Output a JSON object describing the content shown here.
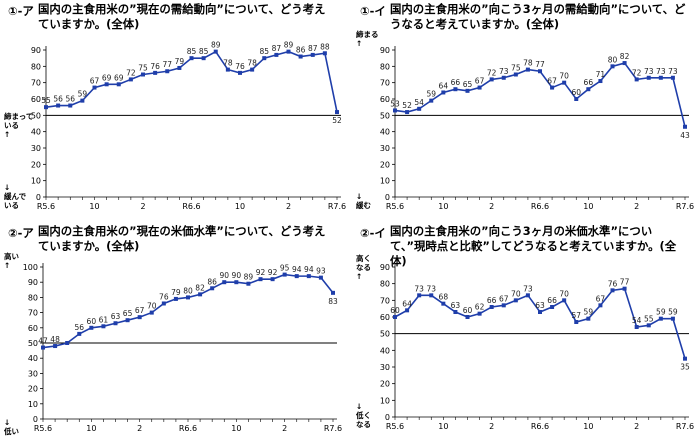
{
  "colors": {
    "line": "#1f3eaa",
    "axis": "#000000",
    "grid": "#d0d0d0",
    "ref": "#000000"
  },
  "panels": [
    {
      "num": "①-ア",
      "title": "国内の主食用米の”現在の需給動向”について、どう考えていますか。(全体)",
      "ylabel_top": [
        "締まって",
        "いる",
        "↑"
      ],
      "ylabel_bottom": [
        "↓",
        "緩んで",
        "いる"
      ]
    },
    {
      "num": "①-イ",
      "title": "国内の主食用米の”向こう3ヶ月の需給動向”について、どうなると考えていますか。(全体)",
      "ylabel_top": [
        "締まる",
        "↑"
      ],
      "ylabel_bottom": [
        "↓",
        "緩む"
      ]
    },
    {
      "num": "②-ア",
      "title": "国内の主食用米の”現在の米価水準”について、どう考えていますか。(全体)",
      "ylabel_top": [
        "高い",
        "↑"
      ],
      "ylabel_bottom": [
        "↓",
        "低い"
      ]
    },
    {
      "num": "②-イ",
      "title": "国内の主食用米の”向こう3ヶ月の米価水準”について、”現時点と比較”してどうなると考えていますか。(全体)",
      "ylabel_top": [
        "高く",
        "なる",
        "↑"
      ],
      "ylabel_bottom": [
        "↓",
        "低く",
        "なる"
      ]
    }
  ],
  "chart_data": [
    {
      "type": "line",
      "ylim": [
        0,
        90
      ],
      "yticks": [
        0,
        10,
        20,
        30,
        40,
        50,
        60,
        70,
        80,
        90
      ],
      "reference": 50,
      "xtick_labels": [
        {
          "i": 0,
          "t": "R5.6"
        },
        {
          "i": 4,
          "t": "10"
        },
        {
          "i": 8,
          "t": "2"
        },
        {
          "i": 12,
          "t": "R6.6"
        },
        {
          "i": 16,
          "t": "10"
        },
        {
          "i": 20,
          "t": "2"
        },
        {
          "i": 24,
          "t": "R7.6"
        }
      ],
      "values": [
        55,
        56,
        56,
        59,
        67,
        69,
        69,
        72,
        75,
        76,
        77,
        79,
        85,
        85,
        89,
        78,
        76,
        78,
        85,
        87,
        89,
        86,
        87,
        88,
        52
      ],
      "labels": [
        "55",
        "56",
        "56",
        "59",
        "67",
        "69",
        "69",
        "72",
        "75",
        "76",
        "77",
        "79",
        "85",
        "85",
        "89",
        "78",
        "76",
        "78",
        "85",
        "87",
        "89",
        "86",
        "87",
        "88",
        "52"
      ]
    },
    {
      "type": "line",
      "ylim": [
        0,
        90
      ],
      "yticks": [
        0,
        10,
        20,
        30,
        40,
        50,
        60,
        70,
        80,
        90
      ],
      "reference": 50,
      "xtick_labels": [
        {
          "i": 0,
          "t": "R5.6"
        },
        {
          "i": 4,
          "t": "10"
        },
        {
          "i": 8,
          "t": "2"
        },
        {
          "i": 12,
          "t": "R6.6"
        },
        {
          "i": 16,
          "t": "10"
        },
        {
          "i": 20,
          "t": "2"
        },
        {
          "i": 24,
          "t": "R7.6"
        }
      ],
      "values": [
        53,
        52,
        54,
        59,
        64,
        66,
        65,
        67,
        72,
        73,
        75,
        78,
        77,
        67,
        70,
        60,
        66,
        71,
        80,
        82,
        72,
        73,
        73,
        73,
        43
      ],
      "labels": [
        "53",
        "52",
        "54",
        "59",
        "64",
        "66",
        "65",
        "67",
        "72",
        "73",
        "75",
        "78",
        "77",
        "67",
        "70",
        "60",
        "66",
        "71",
        "80",
        "82",
        "72",
        "73",
        "73",
        "73",
        "43"
      ]
    },
    {
      "type": "line",
      "ylim": [
        0,
        100
      ],
      "yticks": [
        0,
        10,
        20,
        30,
        40,
        50,
        60,
        70,
        80,
        90,
        100
      ],
      "reference": 50,
      "xtick_labels": [
        {
          "i": 0,
          "t": "R5.6"
        },
        {
          "i": 4,
          "t": "10"
        },
        {
          "i": 8,
          "t": "2"
        },
        {
          "i": 12,
          "t": "R6.6"
        },
        {
          "i": 16,
          "t": "10"
        },
        {
          "i": 20,
          "t": "2"
        },
        {
          "i": 24,
          "t": "R7.6"
        }
      ],
      "values": [
        47,
        48,
        50,
        56,
        60,
        61,
        63,
        65,
        67,
        70,
        76,
        79,
        80,
        82,
        86,
        90,
        90,
        89,
        92,
        92,
        95,
        94,
        94,
        93,
        83
      ],
      "labels": [
        "47",
        "48",
        "",
        "56",
        "60",
        "61",
        "63",
        "65",
        "67",
        "70",
        "76",
        "79",
        "80",
        "82",
        "86",
        "90",
        "90",
        "89",
        "92",
        "92",
        "95",
        "94",
        "94",
        "93",
        "83"
      ]
    },
    {
      "type": "line",
      "ylim": [
        0,
        90
      ],
      "yticks": [
        0,
        10,
        20,
        30,
        40,
        50,
        60,
        70,
        80,
        90
      ],
      "reference": 50,
      "xtick_labels": [
        {
          "i": 0,
          "t": "R5.6"
        },
        {
          "i": 4,
          "t": "10"
        },
        {
          "i": 8,
          "t": "2"
        },
        {
          "i": 12,
          "t": "R6.6"
        },
        {
          "i": 16,
          "t": "10"
        },
        {
          "i": 20,
          "t": "2"
        },
        {
          "i": 24,
          "t": "R7.6"
        }
      ],
      "values": [
        60,
        64,
        73,
        73,
        68,
        63,
        60,
        62,
        66,
        67,
        70,
        73,
        63,
        66,
        70,
        57,
        59,
        67,
        76,
        77,
        54,
        55,
        59,
        59,
        35
      ],
      "labels": [
        "60",
        "64",
        "73",
        "73",
        "68",
        "63",
        "60",
        "62",
        "66",
        "67",
        "70",
        "73",
        "63",
        "66",
        "70",
        "57",
        "59",
        "67",
        "76",
        "77",
        "54",
        "55",
        "59",
        "59",
        "35"
      ]
    }
  ]
}
